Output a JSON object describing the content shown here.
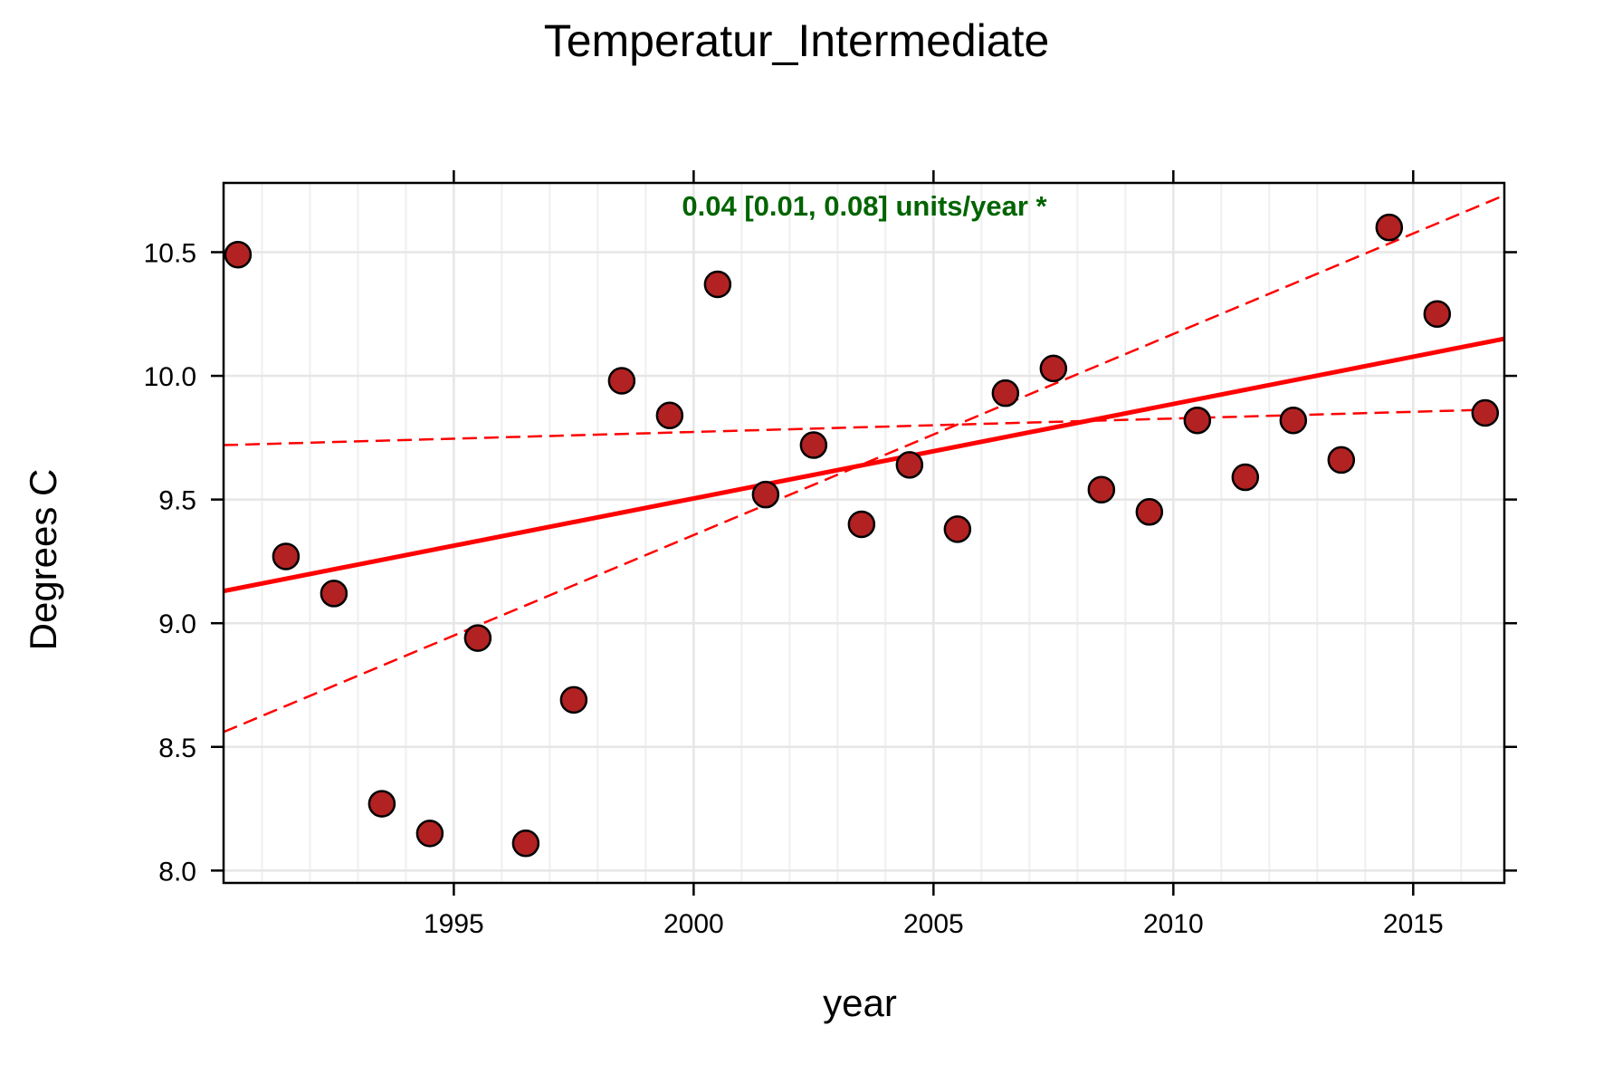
{
  "chart_data": {
    "type": "scatter",
    "title": "Temperatur_Intermediate",
    "xlabel": "year",
    "ylabel": "Degrees C",
    "xlim": [
      1990.2,
      2016.9
    ],
    "ylim": [
      7.95,
      10.78
    ],
    "x_ticks": [
      1995,
      2000,
      2005,
      2010,
      2015
    ],
    "x_tick_labels": [
      "1995",
      "2000",
      "2005",
      "2010",
      "2015"
    ],
    "y_ticks": [
      8.0,
      8.5,
      9.0,
      9.5,
      10.0,
      10.5
    ],
    "y_tick_labels": [
      "8.0",
      "8.5",
      "9.0",
      "9.5",
      "10.0",
      "10.5"
    ],
    "grid": true,
    "annotation": "0.04 [0.01, 0.08] units/year *",
    "annotation_color": "#006400",
    "point_color": "#b22222",
    "trend_color": "#ff0000",
    "points": [
      {
        "x": 1990.5,
        "y": 10.49
      },
      {
        "x": 1991.5,
        "y": 9.27
      },
      {
        "x": 1992.5,
        "y": 9.12
      },
      {
        "x": 1993.5,
        "y": 8.27
      },
      {
        "x": 1994.5,
        "y": 8.15
      },
      {
        "x": 1995.5,
        "y": 8.94
      },
      {
        "x": 1996.5,
        "y": 8.11
      },
      {
        "x": 1997.5,
        "y": 8.69
      },
      {
        "x": 1998.5,
        "y": 9.98
      },
      {
        "x": 1999.5,
        "y": 9.84
      },
      {
        "x": 2000.5,
        "y": 10.37
      },
      {
        "x": 2001.5,
        "y": 9.52
      },
      {
        "x": 2002.5,
        "y": 9.72
      },
      {
        "x": 2003.5,
        "y": 9.4
      },
      {
        "x": 2004.5,
        "y": 9.64
      },
      {
        "x": 2005.5,
        "y": 9.38
      },
      {
        "x": 2006.5,
        "y": 9.93
      },
      {
        "x": 2007.5,
        "y": 10.03
      },
      {
        "x": 2008.5,
        "y": 9.54
      },
      {
        "x": 2009.5,
        "y": 9.45
      },
      {
        "x": 2010.5,
        "y": 9.82
      },
      {
        "x": 2011.5,
        "y": 9.59
      },
      {
        "x": 2012.5,
        "y": 9.82
      },
      {
        "x": 2013.5,
        "y": 9.66
      },
      {
        "x": 2014.5,
        "y": 10.6
      },
      {
        "x": 2015.5,
        "y": 10.25
      },
      {
        "x": 2016.5,
        "y": 9.85
      }
    ],
    "trend_line": {
      "x": [
        1990.2,
        2016.9
      ],
      "y": [
        9.13,
        10.15
      ]
    },
    "lower_bound_line": {
      "x": [
        1990.2,
        2016.9
      ],
      "y": [
        9.72,
        9.865
      ]
    },
    "upper_bound_line": {
      "x": [
        1990.2,
        2016.9
      ],
      "y": [
        8.56,
        10.73
      ]
    }
  }
}
